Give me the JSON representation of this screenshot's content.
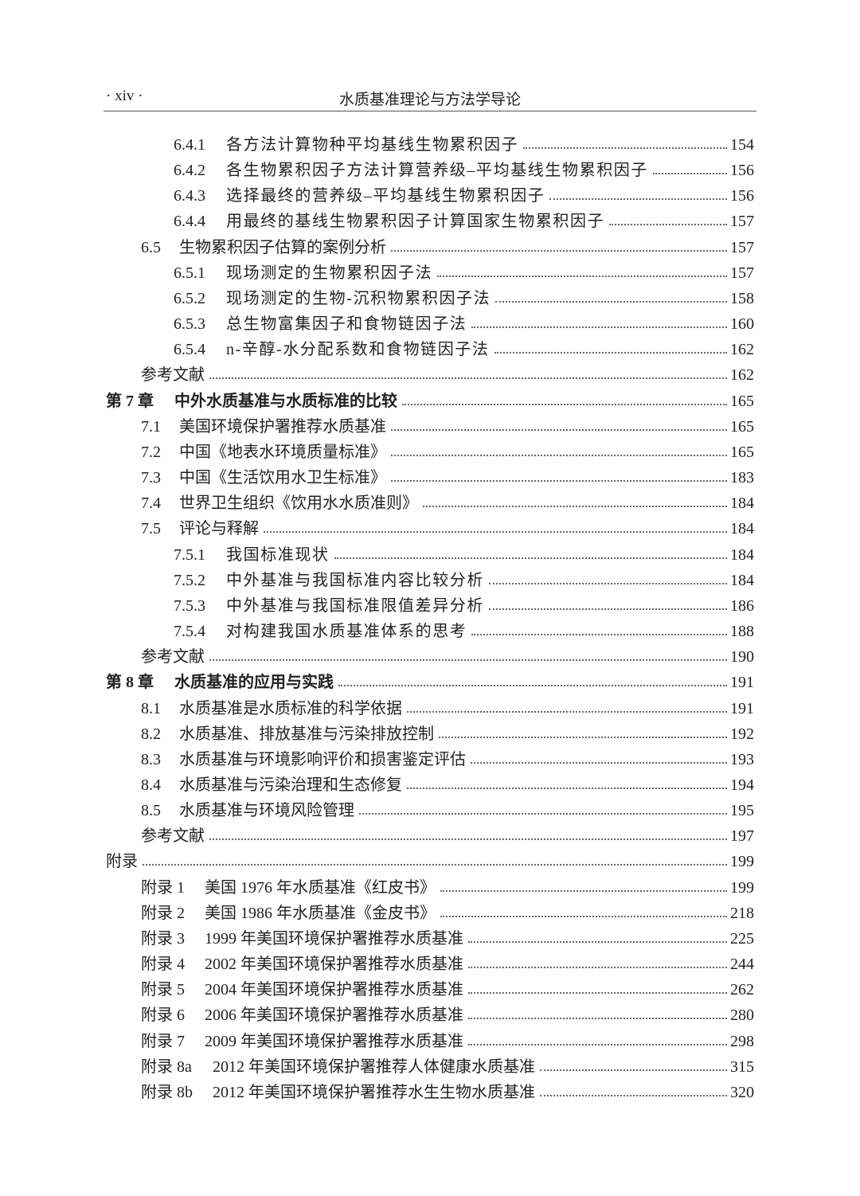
{
  "header": {
    "page_number": "· xiv ·",
    "book_title": "水质基准理论与方法学导论"
  },
  "toc": [
    {
      "level": "subsection",
      "num": "6.4.1",
      "title": "各方法计算物种平均基线生物累积因子",
      "page": "154"
    },
    {
      "level": "subsection",
      "num": "6.4.2",
      "title": "各生物累积因子方法计算营养级–平均基线生物累积因子",
      "page": "156"
    },
    {
      "level": "subsection",
      "num": "6.4.3",
      "title": "选择最终的营养级–平均基线生物累积因子",
      "page": "156"
    },
    {
      "level": "subsection",
      "num": "6.4.4",
      "title": "用最终的基线生物累积因子计算国家生物累积因子",
      "page": "157"
    },
    {
      "level": "section",
      "num": "6.5",
      "title": "生物累积因子估算的案例分析",
      "page": "157"
    },
    {
      "level": "subsection",
      "num": "6.5.1",
      "title": "现场测定的生物累积因子法",
      "page": "157"
    },
    {
      "level": "subsection",
      "num": "6.5.2",
      "title": "现场测定的生物-沉积物累积因子法",
      "page": "158"
    },
    {
      "level": "subsection",
      "num": "6.5.3",
      "title": "总生物富集因子和食物链因子法",
      "page": "160"
    },
    {
      "level": "subsection",
      "num": "6.5.4",
      "title": "n-辛醇-水分配系数和食物链因子法",
      "page": "162"
    },
    {
      "level": "ref",
      "num": "",
      "title": "参考文献",
      "page": "162"
    },
    {
      "level": "chapter",
      "num": "第 7 章",
      "title": "中外水质基准与水质标准的比较",
      "page": "165"
    },
    {
      "level": "section",
      "num": "7.1",
      "title": "美国环境保护署推荐水质基准",
      "page": "165"
    },
    {
      "level": "section",
      "num": "7.2",
      "title": "中国《地表水环境质量标准》",
      "page": "165"
    },
    {
      "level": "section",
      "num": "7.3",
      "title": "中国《生活饮用水卫生标准》",
      "page": "183"
    },
    {
      "level": "section",
      "num": "7.4",
      "title": "世界卫生组织《饮用水水质准则》",
      "page": "184"
    },
    {
      "level": "section",
      "num": "7.5",
      "title": "评论与释解",
      "page": "184"
    },
    {
      "level": "subsection",
      "num": "7.5.1",
      "title": "我国标准现状",
      "page": "184"
    },
    {
      "level": "subsection",
      "num": "7.5.2",
      "title": "中外基准与我国标准内容比较分析",
      "page": "184"
    },
    {
      "level": "subsection",
      "num": "7.5.3",
      "title": "中外基准与我国标准限值差异分析",
      "page": "186"
    },
    {
      "level": "subsection",
      "num": "7.5.4",
      "title": "对构建我国水质基准体系的思考",
      "page": "188"
    },
    {
      "level": "ref",
      "num": "",
      "title": "参考文献",
      "page": "190"
    },
    {
      "level": "chapter",
      "num": "第 8 章",
      "title": "水质基准的应用与实践",
      "page": "191"
    },
    {
      "level": "section",
      "num": "8.1",
      "title": "水质基准是水质标准的科学依据",
      "page": "191"
    },
    {
      "level": "section",
      "num": "8.2",
      "title": "水质基准、排放基准与污染排放控制",
      "page": "192"
    },
    {
      "level": "section",
      "num": "8.3",
      "title": "水质基准与环境影响评价和损害鉴定评估",
      "page": "193"
    },
    {
      "level": "section",
      "num": "8.4",
      "title": "水质基准与污染治理和生态修复",
      "page": "194"
    },
    {
      "level": "section",
      "num": "8.5",
      "title": "水质基准与环境风险管理",
      "page": "195"
    },
    {
      "level": "ref",
      "num": "",
      "title": "参考文献",
      "page": "197"
    },
    {
      "level": "apptop",
      "num": "",
      "title": "附录",
      "page": "199"
    },
    {
      "level": "appendix",
      "num": "附录 1",
      "title": "美国 1976 年水质基准《红皮书》",
      "page": "199"
    },
    {
      "level": "appendix",
      "num": "附录 2",
      "title": "美国 1986 年水质基准《金皮书》",
      "page": "218"
    },
    {
      "level": "appendix",
      "num": "附录 3",
      "title": "1999 年美国环境保护署推荐水质基准",
      "page": "225"
    },
    {
      "level": "appendix",
      "num": "附录 4",
      "title": "2002 年美国环境保护署推荐水质基准",
      "page": "244"
    },
    {
      "level": "appendix",
      "num": "附录 5",
      "title": "2004 年美国环境保护署推荐水质基准",
      "page": "262"
    },
    {
      "level": "appendix",
      "num": "附录 6",
      "title": "2006 年美国环境保护署推荐水质基准",
      "page": "280"
    },
    {
      "level": "appendix",
      "num": "附录 7",
      "title": "2009 年美国环境保护署推荐水质基准",
      "page": "298"
    },
    {
      "level": "appendix wide",
      "num": "附录 8a",
      "title": "2012 年美国环境保护署推荐人体健康水质基准",
      "page": "315"
    },
    {
      "level": "appendix wide",
      "num": "附录 8b",
      "title": "2012 年美国环境保护署推荐水生生物水质基准",
      "page": "320"
    }
  ]
}
